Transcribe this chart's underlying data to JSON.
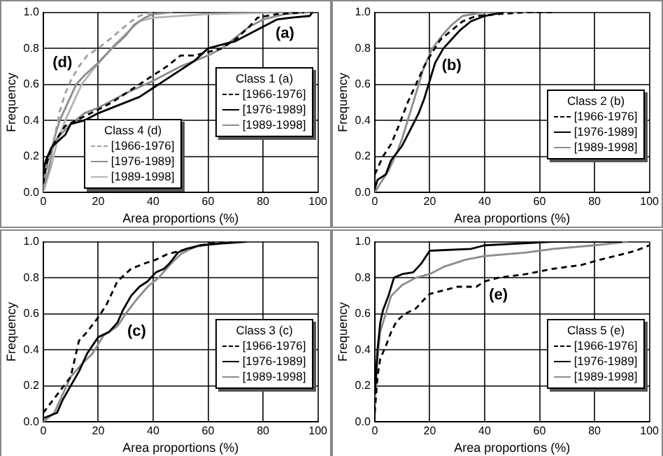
{
  "chart_data": [
    {
      "type": "line",
      "xlabel": "Area proportions (%)",
      "ylabel": "Frequency",
      "legend_title": "Class 1 (a)",
      "xlim": [
        0,
        100
      ],
      "ylim": [
        0,
        1
      ],
      "xticks": [
        0,
        20,
        40,
        60,
        80,
        100
      ],
      "yticks": [
        {
          "value": 0,
          "label": "0.0"
        },
        {
          "value": 0.2,
          "label": "0.2"
        },
        {
          "value": 0.4,
          "label": "0.4"
        },
        {
          "value": 0.6,
          "label": "0.6"
        },
        {
          "value": 0.8,
          "label": "0.8"
        },
        {
          "value": 1,
          "label": "1.0"
        }
      ],
      "grid": true,
      "legend": "right",
      "annotations": [
        "(a)",
        "(d)",
        "Class 4 (d)"
      ],
      "series": [
        {
          "name": "[1966-1976]",
          "color": "#000000",
          "line_style": "dashed",
          "x": [
            0,
            1,
            3,
            5,
            8,
            12,
            20,
            25,
            30,
            35,
            40,
            45,
            50,
            55,
            60,
            65,
            70,
            75,
            78,
            85,
            95
          ],
          "values": [
            0.05,
            0.15,
            0.25,
            0.3,
            0.37,
            0.4,
            0.46,
            0.5,
            0.55,
            0.6,
            0.65,
            0.7,
            0.76,
            0.76,
            0.78,
            0.8,
            0.85,
            0.92,
            0.97,
            0.99,
            1.0
          ]
        },
        {
          "name": "[1976-1989]",
          "color": "#000000",
          "line_style": "solid",
          "x": [
            0,
            1,
            3,
            5,
            8,
            10,
            15,
            20,
            25,
            30,
            35,
            40,
            45,
            50,
            55,
            60,
            65,
            70,
            75,
            80,
            85,
            90,
            97,
            98
          ],
          "values": [
            0.12,
            0.18,
            0.25,
            0.28,
            0.32,
            0.38,
            0.4,
            0.44,
            0.47,
            0.5,
            0.53,
            0.58,
            0.63,
            0.68,
            0.73,
            0.8,
            0.82,
            0.84,
            0.88,
            0.92,
            0.96,
            0.97,
            0.98,
            1.0
          ]
        },
        {
          "name": "[1989-1998]",
          "color": "#8c8c8c",
          "line_style": "solid",
          "x": [
            0,
            2,
            5,
            10,
            15,
            20,
            30,
            40,
            50,
            60,
            65,
            70,
            75,
            80,
            88,
            97
          ],
          "values": [
            0.05,
            0.2,
            0.3,
            0.38,
            0.44,
            0.47,
            0.55,
            0.62,
            0.7,
            0.76,
            0.8,
            0.86,
            0.92,
            0.96,
            0.99,
            1.0
          ]
        },
        {
          "name": "[1966-1976]",
          "color": "#a0a0a0",
          "line_style": "dashed",
          "x": [
            0,
            2,
            4,
            6,
            8,
            10,
            13,
            16,
            20,
            25,
            28,
            32,
            35,
            40
          ],
          "values": [
            0.02,
            0.15,
            0.3,
            0.45,
            0.55,
            0.62,
            0.7,
            0.76,
            0.8,
            0.86,
            0.9,
            0.95,
            0.98,
            1.0
          ]
        },
        {
          "name": "[1976-1989]",
          "color": "#8c8c8c",
          "line_style": "solid",
          "x": [
            0,
            2,
            4,
            6,
            9,
            12,
            15,
            20,
            25,
            30,
            33,
            37,
            40,
            47
          ],
          "values": [
            0.02,
            0.12,
            0.3,
            0.4,
            0.5,
            0.6,
            0.65,
            0.72,
            0.8,
            0.87,
            0.93,
            0.97,
            0.99,
            1.0
          ]
        },
        {
          "name": "[1989-1998]",
          "color": "#b4b4b4",
          "line_style": "solid",
          "x": [
            0,
            3,
            5,
            8,
            11,
            14,
            18,
            22,
            26,
            30,
            35,
            40,
            50,
            60,
            90
          ],
          "values": [
            0.0,
            0.15,
            0.28,
            0.4,
            0.5,
            0.6,
            0.68,
            0.75,
            0.82,
            0.88,
            0.95,
            0.97,
            0.98,
            0.99,
            1.0
          ]
        }
      ]
    },
    {
      "type": "line",
      "xlabel": "Area proportions (%)",
      "ylabel": "Frequency",
      "legend_title": "Class 2 (b)",
      "xlim": [
        0,
        100
      ],
      "ylim": [
        0,
        1
      ],
      "xticks": [
        0,
        20,
        40,
        60,
        80,
        100
      ],
      "yticks": [
        {
          "value": 0,
          "label": "0.0"
        },
        {
          "value": 0.2,
          "label": "0.2"
        },
        {
          "value": 0.4,
          "label": "0.4"
        },
        {
          "value": 0.6,
          "label": "0.6"
        },
        {
          "value": 0.8,
          "label": "0.8"
        },
        {
          "value": 1,
          "label": "1.0"
        }
      ],
      "grid": true,
      "legend": "right",
      "annotations": [
        "(b)"
      ],
      "series": [
        {
          "name": "[1966-1976]",
          "color": "#000000",
          "line_style": "dashed",
          "x": [
            0,
            3,
            6,
            9,
            12,
            15,
            18,
            21,
            24,
            28,
            32,
            37,
            45,
            55,
            66
          ],
          "values": [
            0.1,
            0.2,
            0.27,
            0.38,
            0.5,
            0.6,
            0.7,
            0.78,
            0.85,
            0.9,
            0.95,
            0.98,
            0.99,
            1.0,
            1.0
          ]
        },
        {
          "name": "[1976-1989]",
          "color": "#000000",
          "line_style": "solid",
          "x": [
            0,
            1,
            4,
            6,
            8,
            10,
            13,
            16,
            18,
            20,
            22,
            25,
            28,
            31,
            35,
            40,
            47
          ],
          "values": [
            0.02,
            0.07,
            0.1,
            0.18,
            0.22,
            0.26,
            0.35,
            0.44,
            0.52,
            0.62,
            0.72,
            0.8,
            0.85,
            0.9,
            0.95,
            0.98,
            1.0
          ]
        },
        {
          "name": "[1989-1998]",
          "color": "#8c8c8c",
          "line_style": "solid",
          "x": [
            0,
            2,
            5,
            8,
            10,
            12,
            14,
            16,
            18,
            21,
            25,
            28,
            32,
            40,
            55
          ],
          "values": [
            0.0,
            0.05,
            0.12,
            0.22,
            0.3,
            0.4,
            0.5,
            0.6,
            0.7,
            0.8,
            0.88,
            0.93,
            0.98,
            1.0,
            1.0
          ]
        }
      ]
    },
    {
      "type": "line",
      "xlabel": "Area proportions (%)",
      "ylabel": "Frequency",
      "legend_title": "Class 3 (c)",
      "xlim": [
        0,
        100
      ],
      "ylim": [
        0,
        1
      ],
      "xticks": [
        0,
        20,
        40,
        60,
        80,
        100
      ],
      "yticks": [
        {
          "value": 0,
          "label": "0.0"
        },
        {
          "value": 0.2,
          "label": "0.2"
        },
        {
          "value": 0.4,
          "label": "0.4"
        },
        {
          "value": 0.6,
          "label": "0.6"
        },
        {
          "value": 0.8,
          "label": "0.8"
        },
        {
          "value": 1,
          "label": "1.0"
        }
      ],
      "grid": true,
      "legend": "right",
      "annotations": [
        "(c)"
      ],
      "series": [
        {
          "name": "[1966-1976]",
          "color": "#000000",
          "line_style": "dashed",
          "x": [
            0,
            5,
            10,
            13,
            16,
            20,
            23,
            27,
            32,
            37,
            41,
            45,
            50,
            55,
            60,
            70
          ],
          "values": [
            0.05,
            0.15,
            0.25,
            0.45,
            0.5,
            0.58,
            0.65,
            0.78,
            0.85,
            0.88,
            0.9,
            0.93,
            0.95,
            0.97,
            0.99,
            1.0
          ]
        },
        {
          "name": "[1976-1989]",
          "color": "#000000",
          "line_style": "solid",
          "x": [
            0,
            5,
            7,
            10,
            13,
            16,
            20,
            24,
            27,
            29,
            32,
            35,
            38,
            41,
            44,
            46,
            49,
            52,
            57,
            65,
            74
          ],
          "values": [
            0.02,
            0.05,
            0.12,
            0.2,
            0.28,
            0.38,
            0.47,
            0.5,
            0.55,
            0.62,
            0.7,
            0.75,
            0.78,
            0.83,
            0.85,
            0.88,
            0.94,
            0.96,
            0.98,
            0.99,
            1.0
          ]
        },
        {
          "name": "[1989-1998]",
          "color": "#8c8c8c",
          "line_style": "solid",
          "x": [
            0,
            4,
            7,
            10,
            14,
            18,
            22,
            27,
            30,
            34,
            38,
            42,
            46,
            50,
            55,
            62,
            70
          ],
          "values": [
            0.0,
            0.05,
            0.15,
            0.25,
            0.32,
            0.38,
            0.48,
            0.53,
            0.6,
            0.68,
            0.75,
            0.8,
            0.87,
            0.93,
            0.97,
            0.99,
            1.0
          ]
        }
      ]
    },
    {
      "type": "line",
      "xlabel": "Area proportions (%)",
      "ylabel": "Frequency",
      "legend_title": "Class 5 (e)",
      "xlim": [
        0,
        100
      ],
      "ylim": [
        0,
        1
      ],
      "xticks": [
        0,
        20,
        40,
        60,
        80,
        100
      ],
      "yticks": [
        {
          "value": 0,
          "label": "0.0"
        },
        {
          "value": 0.2,
          "label": "0.2"
        },
        {
          "value": 0.4,
          "label": "0.4"
        },
        {
          "value": 0.6,
          "label": "0.6"
        },
        {
          "value": 0.8,
          "label": "0.8"
        },
        {
          "value": 1,
          "label": "1.0"
        }
      ],
      "grid": true,
      "legend": "right",
      "annotations": [
        "(e)"
      ],
      "series": [
        {
          "name": "[1966-1976]",
          "color": "#000000",
          "line_style": "dashed",
          "x": [
            0,
            1,
            2,
            4,
            6,
            8,
            11,
            15,
            18,
            20,
            25,
            30,
            37,
            40,
            45,
            55,
            65,
            75,
            82,
            90,
            95,
            100
          ],
          "values": [
            0.05,
            0.25,
            0.35,
            0.42,
            0.5,
            0.56,
            0.6,
            0.63,
            0.68,
            0.71,
            0.73,
            0.75,
            0.75,
            0.78,
            0.8,
            0.82,
            0.85,
            0.87,
            0.9,
            0.93,
            0.95,
            0.98
          ]
        },
        {
          "name": "[1976-1989]",
          "color": "#000000",
          "line_style": "solid",
          "x": [
            0,
            1,
            2,
            3,
            5,
            7,
            10,
            14,
            17,
            20,
            35,
            40,
            53,
            65,
            90
          ],
          "values": [
            0.15,
            0.4,
            0.55,
            0.62,
            0.7,
            0.8,
            0.82,
            0.83,
            0.88,
            0.95,
            0.96,
            0.98,
            0.99,
            1.0,
            1.0
          ]
        },
        {
          "name": "[1989-1998]",
          "color": "#8c8c8c",
          "line_style": "solid",
          "x": [
            0,
            1,
            2,
            4,
            6,
            10,
            15,
            20,
            25,
            33,
            40,
            55,
            65,
            80,
            92
          ],
          "values": [
            0.1,
            0.35,
            0.5,
            0.6,
            0.7,
            0.76,
            0.8,
            0.82,
            0.86,
            0.9,
            0.92,
            0.94,
            0.96,
            0.98,
            1.0
          ]
        }
      ]
    }
  ]
}
